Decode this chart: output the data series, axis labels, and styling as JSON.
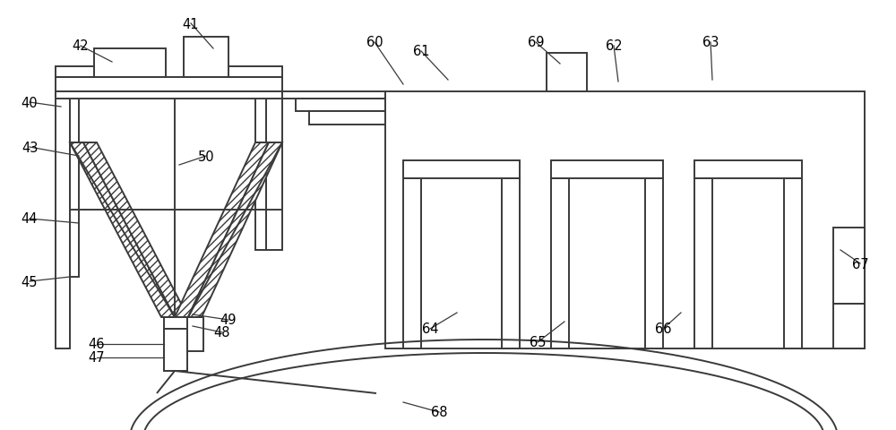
{
  "bg_color": "#ffffff",
  "line_color": "#3a3a3a",
  "lw": 1.4,
  "figsize": [
    10.0,
    4.81
  ],
  "dpi": 100
}
